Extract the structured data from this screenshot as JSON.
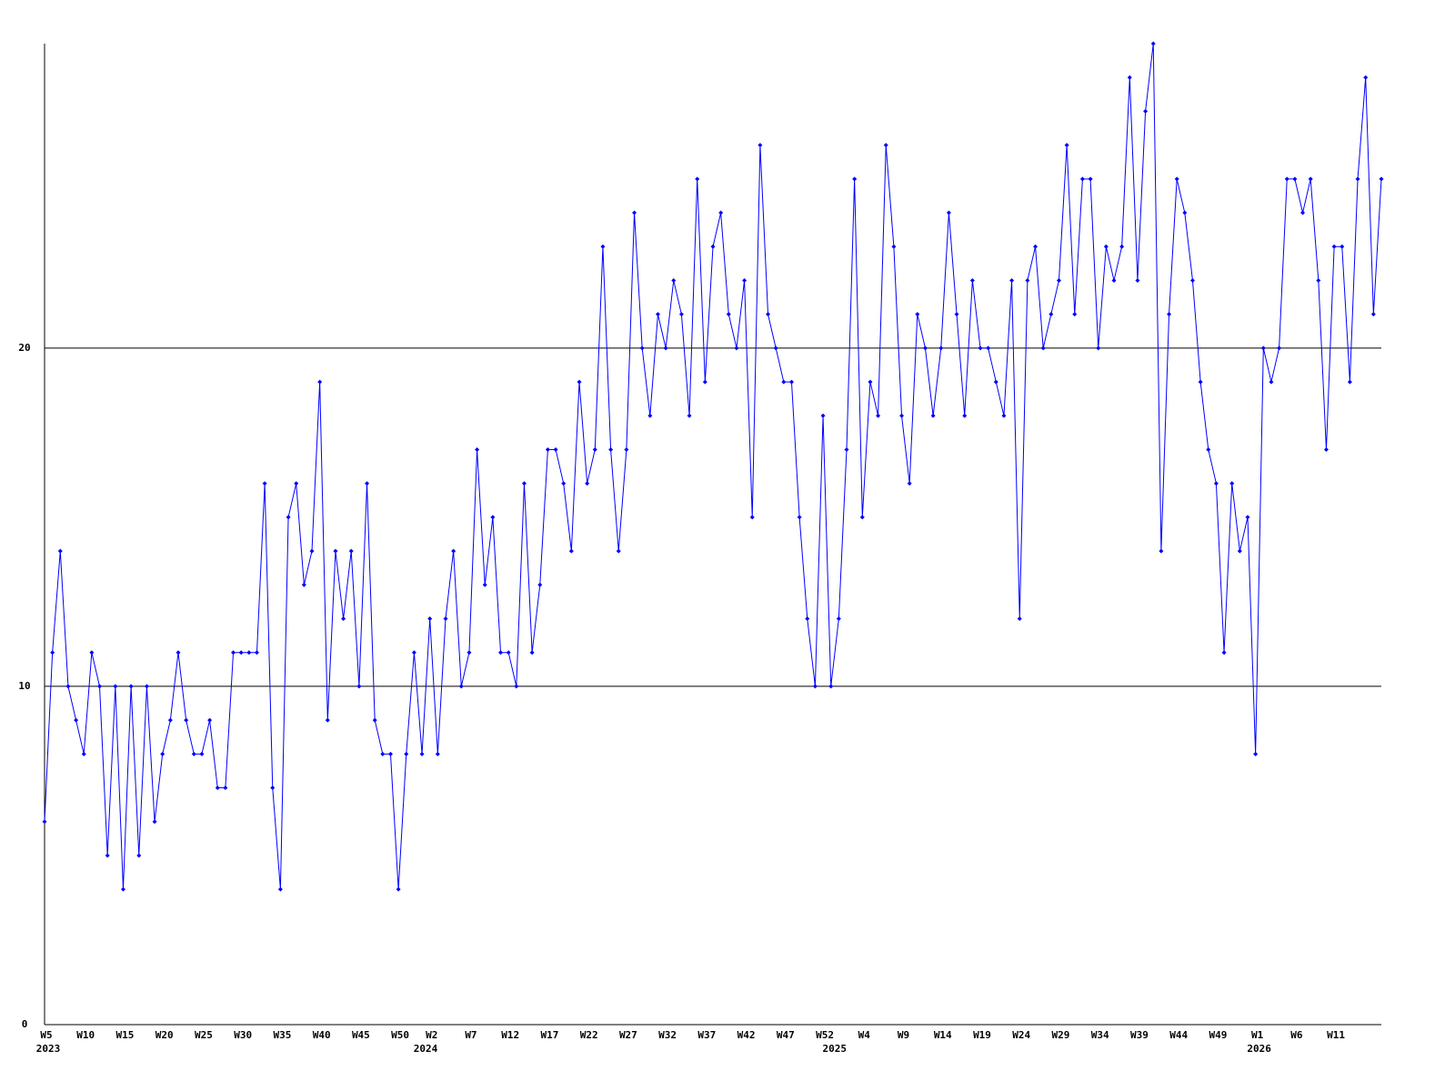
{
  "chart_data": {
    "type": "line",
    "categories": [
      "W5",
      null,
      null,
      null,
      null,
      "W10",
      null,
      null,
      null,
      null,
      "W15",
      null,
      null,
      null,
      null,
      "W20",
      null,
      null,
      null,
      null,
      "W25",
      null,
      null,
      null,
      null,
      "W30",
      null,
      null,
      null,
      null,
      "W35",
      null,
      null,
      null,
      null,
      "W40",
      null,
      null,
      null,
      null,
      "W45",
      null,
      null,
      null,
      null,
      "W50",
      null,
      null,
      null,
      "W2",
      null,
      null,
      null,
      null,
      "W7",
      null,
      null,
      null,
      null,
      "W12",
      null,
      null,
      null,
      null,
      "W17",
      null,
      null,
      null,
      null,
      "W22",
      null,
      null,
      null,
      null,
      "W27",
      null,
      null,
      null,
      null,
      "W32",
      null,
      null,
      null,
      null,
      "W37",
      null,
      null,
      null,
      null,
      "W42",
      null,
      null,
      null,
      null,
      "W47",
      null,
      null,
      null,
      null,
      "W52",
      null,
      null,
      null,
      null,
      "W4",
      null,
      null,
      null,
      null,
      "W9",
      null,
      null,
      null,
      null,
      "W14",
      null,
      null,
      null,
      null,
      "W19",
      null,
      null,
      null,
      null,
      "W24",
      null,
      null,
      null,
      null,
      "W29",
      null,
      null,
      null,
      null,
      "W34",
      null,
      null,
      null,
      null,
      "W39",
      null,
      null,
      null,
      null,
      "W44",
      null,
      null,
      null,
      null,
      "W49",
      null,
      null,
      null,
      null,
      "W1",
      null,
      null,
      null,
      null,
      "W6",
      null,
      null,
      null,
      null,
      "W11",
      null,
      null,
      null,
      null,
      null,
      null
    ],
    "year_labels": [
      "2023",
      null,
      null,
      null,
      null,
      null,
      null,
      null,
      null,
      null,
      null,
      null,
      null,
      null,
      null,
      null,
      null,
      null,
      null,
      null,
      null,
      null,
      null,
      null,
      null,
      null,
      null,
      null,
      null,
      null,
      null,
      null,
      null,
      null,
      null,
      null,
      null,
      null,
      null,
      null,
      null,
      null,
      null,
      null,
      null,
      null,
      null,
      null,
      "2024",
      null,
      null,
      null,
      null,
      null,
      null,
      null,
      null,
      null,
      null,
      null,
      null,
      null,
      null,
      null,
      null,
      null,
      null,
      null,
      null,
      null,
      null,
      null,
      null,
      null,
      null,
      null,
      null,
      null,
      null,
      null,
      null,
      null,
      null,
      null,
      null,
      null,
      null,
      null,
      null,
      null,
      null,
      null,
      null,
      null,
      null,
      null,
      null,
      null,
      null,
      null,
      "2025",
      null,
      null,
      null,
      null,
      null,
      null,
      null,
      null,
      null,
      null,
      null,
      null,
      null,
      null,
      null,
      null,
      null,
      null,
      null,
      null,
      null,
      null,
      null,
      null,
      null,
      null,
      null,
      null,
      null,
      null,
      null,
      null,
      null,
      null,
      null,
      null,
      null,
      null,
      null,
      null,
      null,
      null,
      null,
      null,
      null,
      null,
      null,
      null,
      null,
      null,
      null,
      null,
      null,
      "2026",
      null,
      null,
      null,
      null,
      null,
      null,
      null,
      null,
      null,
      null,
      null,
      null,
      null,
      null,
      null,
      null
    ],
    "series": [
      {
        "color": "#0000ff",
        "values": [
          6,
          11,
          14,
          10,
          9,
          8,
          11,
          10,
          5,
          10,
          4,
          10,
          5,
          10,
          6,
          8,
          9,
          11,
          9,
          8,
          8,
          9,
          7,
          7,
          11,
          11,
          11,
          11,
          16,
          7,
          4,
          15,
          16,
          13,
          14,
          19,
          9,
          14,
          12,
          14,
          10,
          16,
          9,
          8,
          8,
          4,
          8,
          11,
          8,
          12,
          8,
          12,
          14,
          10,
          11,
          17,
          13,
          15,
          11,
          11,
          10,
          16,
          11,
          13,
          17,
          17,
          16,
          14,
          19,
          16,
          17,
          23,
          17,
          14,
          17,
          24,
          20,
          18,
          21,
          20,
          22,
          21,
          18,
          25,
          19,
          23,
          24,
          21,
          20,
          22,
          15,
          26,
          21,
          20,
          19,
          19,
          15,
          12,
          10,
          18,
          10,
          12,
          17,
          25,
          15,
          19,
          18,
          26,
          23,
          18,
          16,
          21,
          20,
          18,
          20,
          24,
          21,
          18,
          22,
          20,
          20,
          19,
          18,
          22,
          12,
          22,
          23,
          20,
          21,
          22,
          26,
          21,
          25,
          25,
          20,
          23,
          22,
          23,
          28,
          22,
          27,
          29,
          14,
          21,
          25,
          24,
          22,
          19,
          17,
          16,
          11,
          16,
          14,
          15,
          8,
          20,
          19,
          20,
          25,
          25,
          24,
          25,
          22,
          17,
          23,
          23,
          19,
          25,
          28,
          21,
          25
        ]
      }
    ],
    "ylim": [
      0,
      29
    ],
    "yticks": [
      0,
      10,
      20
    ],
    "grid": true
  }
}
